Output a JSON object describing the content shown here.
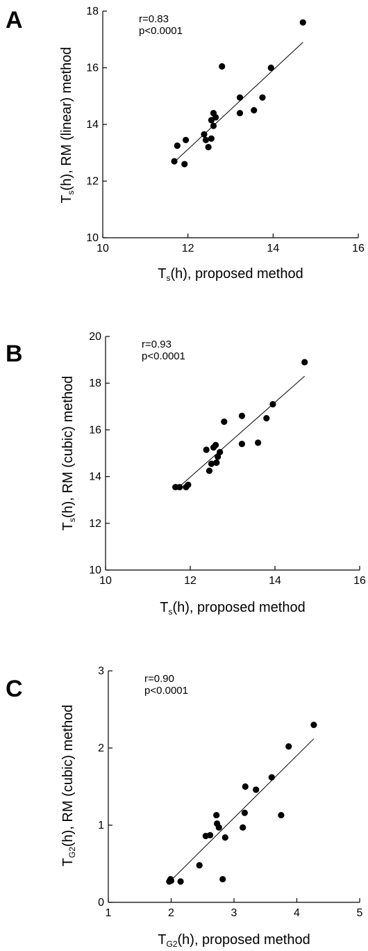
{
  "chart_data": [
    {
      "type": "scatter",
      "panel": "A",
      "annotation": [
        "r=0.83",
        "p<0.0001"
      ],
      "xlabel": {
        "main": "T",
        "sub": "s",
        "rest": "(h), proposed method"
      },
      "ylabel": {
        "main": "T",
        "sub": "s",
        "rest": "(h), RM (linear) method"
      },
      "xlim": [
        10,
        16
      ],
      "ylim": [
        10,
        18
      ],
      "xticks": [
        "10",
        "12",
        "14",
        "16"
      ],
      "yticks": [
        "10",
        "12",
        "14",
        "16",
        "18"
      ],
      "fit_line": {
        "x1": 11.7,
        "y1": 12.7,
        "x2": 14.7,
        "y2": 16.9
      },
      "points": [
        [
          11.68,
          12.7
        ],
        [
          11.75,
          13.25
        ],
        [
          11.92,
          12.6
        ],
        [
          11.95,
          13.45
        ],
        [
          12.38,
          13.65
        ],
        [
          12.42,
          13.45
        ],
        [
          12.48,
          13.2
        ],
        [
          12.55,
          13.5
        ],
        [
          12.55,
          14.15
        ],
        [
          12.6,
          14.4
        ],
        [
          12.6,
          13.95
        ],
        [
          12.65,
          14.25
        ],
        [
          12.8,
          16.05
        ],
        [
          13.22,
          14.95
        ],
        [
          13.22,
          14.4
        ],
        [
          13.55,
          14.5
        ],
        [
          13.75,
          14.95
        ],
        [
          13.95,
          16.0
        ],
        [
          14.7,
          17.6
        ]
      ]
    },
    {
      "type": "scatter",
      "panel": "B",
      "annotation": [
        "r=0.93",
        "p<0.0001"
      ],
      "xlabel": {
        "main": "T",
        "sub": "s",
        "rest": "(h), proposed method"
      },
      "ylabel": {
        "main": "T",
        "sub": "s",
        "rest": "(h), RM (cubic) method"
      },
      "xlim": [
        10,
        16
      ],
      "ylim": [
        10,
        20
      ],
      "xticks": [
        "10",
        "12",
        "14",
        "16"
      ],
      "yticks": [
        "10",
        "12",
        "14",
        "16",
        "18",
        "20"
      ],
      "fit_line": {
        "x1": 11.7,
        "y1": 13.5,
        "x2": 14.7,
        "y2": 18.3
      },
      "points": [
        [
          11.65,
          13.55
        ],
        [
          11.75,
          13.55
        ],
        [
          11.9,
          13.55
        ],
        [
          11.95,
          13.65
        ],
        [
          12.38,
          15.15
        ],
        [
          12.45,
          14.25
        ],
        [
          12.5,
          14.55
        ],
        [
          12.55,
          15.25
        ],
        [
          12.6,
          15.35
        ],
        [
          12.62,
          14.6
        ],
        [
          12.65,
          14.85
        ],
        [
          12.7,
          15.05
        ],
        [
          12.8,
          16.35
        ],
        [
          13.22,
          15.4
        ],
        [
          13.22,
          16.6
        ],
        [
          13.6,
          15.45
        ],
        [
          13.8,
          16.5
        ],
        [
          13.95,
          17.1
        ],
        [
          14.7,
          18.9
        ]
      ]
    },
    {
      "type": "scatter",
      "panel": "C",
      "annotation": [
        "r=0.90",
        "p<0.0001"
      ],
      "xlabel": {
        "main": "T",
        "sub": "G2",
        "rest": "(h), proposed method"
      },
      "ylabel": {
        "main": "T",
        "sub": "G2",
        "rest": "(h), RM (cubic) method"
      },
      "xlim": [
        1,
        5
      ],
      "ylim": [
        0,
        3
      ],
      "xticks": [
        "1",
        "2",
        "3",
        "4",
        "5"
      ],
      "yticks": [
        "0",
        "1",
        "2",
        "3"
      ],
      "fit_line": {
        "x1": 1.98,
        "y1": 0.27,
        "x2": 4.27,
        "y2": 2.12
      },
      "points": [
        [
          1.97,
          0.27
        ],
        [
          1.99,
          0.3
        ],
        [
          2.0,
          0.28
        ],
        [
          2.15,
          0.27
        ],
        [
          2.45,
          0.48
        ],
        [
          2.55,
          0.86
        ],
        [
          2.62,
          0.87
        ],
        [
          2.72,
          1.13
        ],
        [
          2.73,
          1.02
        ],
        [
          2.76,
          0.97
        ],
        [
          2.82,
          0.3
        ],
        [
          2.86,
          0.84
        ],
        [
          3.14,
          0.97
        ],
        [
          3.17,
          1.16
        ],
        [
          3.18,
          1.5
        ],
        [
          3.35,
          1.46
        ],
        [
          3.6,
          1.62
        ],
        [
          3.75,
          1.13
        ],
        [
          3.87,
          2.02
        ],
        [
          4.27,
          2.3
        ]
      ]
    }
  ]
}
